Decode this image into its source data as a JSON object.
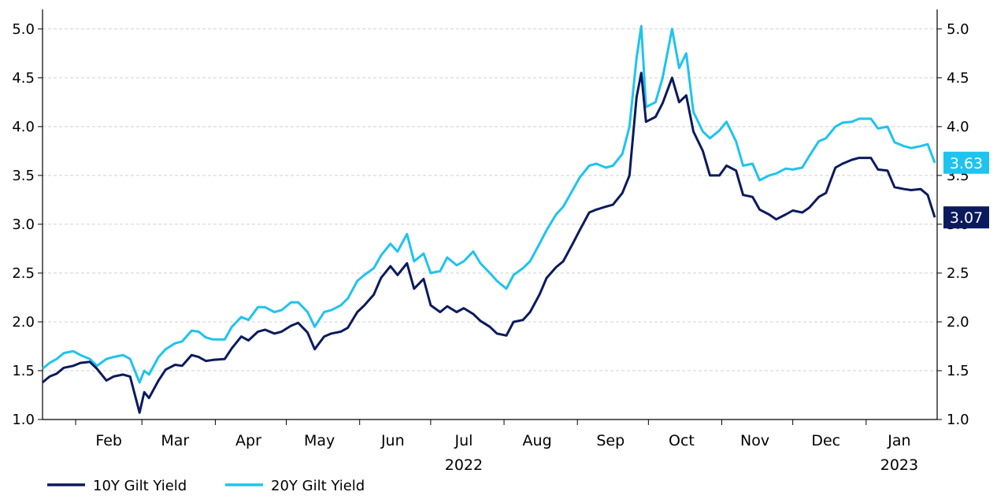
{
  "chart_data": {
    "type": "line",
    "y_axis_left": {
      "ticks": [
        "1.0",
        "1.5",
        "2.0",
        "2.5",
        "3.0",
        "3.5",
        "4.0",
        "4.5",
        "5.0"
      ],
      "range": [
        1.0,
        5.2
      ]
    },
    "y_axis_right": {
      "ticks": [
        "1.0",
        "1.5",
        "2.0",
        "2.5",
        "3.0",
        "3.5",
        "4.0",
        "4.5",
        "5.0"
      ],
      "range": [
        1.0,
        5.2
      ]
    },
    "x_axis": {
      "range": [
        "2022-01-18",
        "2023-01-31"
      ],
      "month_labels": [
        {
          "label": "Feb",
          "date": "2022-02-15"
        },
        {
          "label": "Mar",
          "date": "2022-03-15"
        },
        {
          "label": "Apr",
          "date": "2022-04-15"
        },
        {
          "label": "May",
          "date": "2022-05-15"
        },
        {
          "label": "Jun",
          "date": "2022-06-15"
        },
        {
          "label": "Jul",
          "date": "2022-07-15"
        },
        {
          "label": "Aug",
          "date": "2022-08-15"
        },
        {
          "label": "Sep",
          "date": "2022-09-15"
        },
        {
          "label": "Oct",
          "date": "2022-10-15"
        },
        {
          "label": "Nov",
          "date": "2022-11-15"
        },
        {
          "label": "Dec",
          "date": "2022-12-15"
        },
        {
          "label": "Jan",
          "date": "2023-01-15"
        }
      ],
      "month_boundaries": [
        "2022-02-01",
        "2022-03-01",
        "2022-04-01",
        "2022-05-01",
        "2022-06-01",
        "2022-07-01",
        "2022-08-01",
        "2022-09-01",
        "2022-10-01",
        "2022-11-01",
        "2022-12-01",
        "2023-01-01"
      ],
      "year_labels": [
        {
          "label": "2022",
          "date": "2022-07-15"
        },
        {
          "label": "2023",
          "date": "2023-01-15"
        }
      ]
    },
    "grid": "horizontal-dashed",
    "legend_position": "bottom-left",
    "series": [
      {
        "name": "10Y Gilt Yield",
        "color": "#0b1a5e",
        "end_label": "3.07",
        "points": [
          [
            "2022-01-18",
            1.38
          ],
          [
            "2022-01-21",
            1.44
          ],
          [
            "2022-01-24",
            1.47
          ],
          [
            "2022-01-27",
            1.53
          ],
          [
            "2022-01-31",
            1.55
          ],
          [
            "2022-02-03",
            1.58
          ],
          [
            "2022-02-07",
            1.59
          ],
          [
            "2022-02-10",
            1.52
          ],
          [
            "2022-02-14",
            1.4
          ],
          [
            "2022-02-17",
            1.44
          ],
          [
            "2022-02-21",
            1.46
          ],
          [
            "2022-02-24",
            1.44
          ],
          [
            "2022-02-28",
            1.07
          ],
          [
            "2022-03-02",
            1.28
          ],
          [
            "2022-03-04",
            1.22
          ],
          [
            "2022-03-08",
            1.4
          ],
          [
            "2022-03-11",
            1.51
          ],
          [
            "2022-03-15",
            1.56
          ],
          [
            "2022-03-18",
            1.55
          ],
          [
            "2022-03-22",
            1.66
          ],
          [
            "2022-03-25",
            1.64
          ],
          [
            "2022-03-28",
            1.6
          ],
          [
            "2022-03-31",
            1.61
          ],
          [
            "2022-04-05",
            1.62
          ],
          [
            "2022-04-08",
            1.73
          ],
          [
            "2022-04-12",
            1.85
          ],
          [
            "2022-04-15",
            1.81
          ],
          [
            "2022-04-19",
            1.9
          ],
          [
            "2022-04-22",
            1.92
          ],
          [
            "2022-04-26",
            1.88
          ],
          [
            "2022-04-29",
            1.9
          ],
          [
            "2022-05-03",
            1.96
          ],
          [
            "2022-05-06",
            1.99
          ],
          [
            "2022-05-10",
            1.89
          ],
          [
            "2022-05-13",
            1.72
          ],
          [
            "2022-05-17",
            1.85
          ],
          [
            "2022-05-20",
            1.88
          ],
          [
            "2022-05-24",
            1.9
          ],
          [
            "2022-05-27",
            1.94
          ],
          [
            "2022-05-31",
            2.1
          ],
          [
            "2022-06-03",
            2.17
          ],
          [
            "2022-06-07",
            2.28
          ],
          [
            "2022-06-10",
            2.45
          ],
          [
            "2022-06-14",
            2.57
          ],
          [
            "2022-06-17",
            2.48
          ],
          [
            "2022-06-21",
            2.6
          ],
          [
            "2022-06-24",
            2.34
          ],
          [
            "2022-06-28",
            2.44
          ],
          [
            "2022-07-01",
            2.17
          ],
          [
            "2022-07-05",
            2.1
          ],
          [
            "2022-07-08",
            2.16
          ],
          [
            "2022-07-12",
            2.1
          ],
          [
            "2022-07-15",
            2.14
          ],
          [
            "2022-07-19",
            2.08
          ],
          [
            "2022-07-22",
            2.01
          ],
          [
            "2022-07-26",
            1.95
          ],
          [
            "2022-07-29",
            1.88
          ],
          [
            "2022-08-02",
            1.86
          ],
          [
            "2022-08-05",
            2.0
          ],
          [
            "2022-08-09",
            2.02
          ],
          [
            "2022-08-12",
            2.1
          ],
          [
            "2022-08-16",
            2.28
          ],
          [
            "2022-08-19",
            2.45
          ],
          [
            "2022-08-23",
            2.56
          ],
          [
            "2022-08-26",
            2.62
          ],
          [
            "2022-08-30",
            2.8
          ],
          [
            "2022-09-02",
            2.94
          ],
          [
            "2022-09-06",
            3.12
          ],
          [
            "2022-09-09",
            3.15
          ],
          [
            "2022-09-13",
            3.18
          ],
          [
            "2022-09-16",
            3.2
          ],
          [
            "2022-09-20",
            3.32
          ],
          [
            "2022-09-23",
            3.5
          ],
          [
            "2022-09-26",
            4.3
          ],
          [
            "2022-09-28",
            4.55
          ],
          [
            "2022-09-30",
            4.05
          ],
          [
            "2022-10-04",
            4.1
          ],
          [
            "2022-10-07",
            4.24
          ],
          [
            "2022-10-11",
            4.5
          ],
          [
            "2022-10-14",
            4.25
          ],
          [
            "2022-10-17",
            4.32
          ],
          [
            "2022-10-20",
            3.95
          ],
          [
            "2022-10-24",
            3.75
          ],
          [
            "2022-10-27",
            3.5
          ],
          [
            "2022-10-31",
            3.5
          ],
          [
            "2022-11-03",
            3.6
          ],
          [
            "2022-11-07",
            3.55
          ],
          [
            "2022-11-10",
            3.3
          ],
          [
            "2022-11-14",
            3.28
          ],
          [
            "2022-11-17",
            3.15
          ],
          [
            "2022-11-21",
            3.1
          ],
          [
            "2022-11-24",
            3.05
          ],
          [
            "2022-11-28",
            3.1
          ],
          [
            "2022-12-01",
            3.14
          ],
          [
            "2022-12-05",
            3.12
          ],
          [
            "2022-12-08",
            3.17
          ],
          [
            "2022-12-12",
            3.28
          ],
          [
            "2022-12-15",
            3.32
          ],
          [
            "2022-12-19",
            3.58
          ],
          [
            "2022-12-22",
            3.62
          ],
          [
            "2022-12-26",
            3.66
          ],
          [
            "2022-12-29",
            3.68
          ],
          [
            "2023-01-03",
            3.68
          ],
          [
            "2023-01-06",
            3.56
          ],
          [
            "2023-01-10",
            3.55
          ],
          [
            "2023-01-13",
            3.38
          ],
          [
            "2023-01-17",
            3.36
          ],
          [
            "2023-01-20",
            3.35
          ],
          [
            "2023-01-24",
            3.36
          ],
          [
            "2023-01-27",
            3.3
          ],
          [
            "2023-01-30",
            3.07
          ]
        ]
      },
      {
        "name": "20Y Gilt Yield",
        "color": "#1ec3f0",
        "end_label": "3.63",
        "points": [
          [
            "2022-01-18",
            1.52
          ],
          [
            "2022-01-21",
            1.58
          ],
          [
            "2022-01-24",
            1.62
          ],
          [
            "2022-01-27",
            1.68
          ],
          [
            "2022-01-31",
            1.7
          ],
          [
            "2022-02-03",
            1.66
          ],
          [
            "2022-02-07",
            1.62
          ],
          [
            "2022-02-10",
            1.55
          ],
          [
            "2022-02-14",
            1.62
          ],
          [
            "2022-02-17",
            1.64
          ],
          [
            "2022-02-21",
            1.66
          ],
          [
            "2022-02-24",
            1.62
          ],
          [
            "2022-02-28",
            1.38
          ],
          [
            "2022-03-02",
            1.5
          ],
          [
            "2022-03-04",
            1.46
          ],
          [
            "2022-03-08",
            1.64
          ],
          [
            "2022-03-11",
            1.72
          ],
          [
            "2022-03-15",
            1.78
          ],
          [
            "2022-03-18",
            1.8
          ],
          [
            "2022-03-22",
            1.91
          ],
          [
            "2022-03-25",
            1.9
          ],
          [
            "2022-03-28",
            1.84
          ],
          [
            "2022-03-31",
            1.82
          ],
          [
            "2022-04-05",
            1.82
          ],
          [
            "2022-04-08",
            1.95
          ],
          [
            "2022-04-12",
            2.05
          ],
          [
            "2022-04-15",
            2.02
          ],
          [
            "2022-04-19",
            2.15
          ],
          [
            "2022-04-22",
            2.15
          ],
          [
            "2022-04-26",
            2.1
          ],
          [
            "2022-04-29",
            2.12
          ],
          [
            "2022-05-03",
            2.2
          ],
          [
            "2022-05-06",
            2.2
          ],
          [
            "2022-05-10",
            2.1
          ],
          [
            "2022-05-13",
            1.95
          ],
          [
            "2022-05-17",
            2.1
          ],
          [
            "2022-05-20",
            2.12
          ],
          [
            "2022-05-24",
            2.17
          ],
          [
            "2022-05-27",
            2.24
          ],
          [
            "2022-05-31",
            2.42
          ],
          [
            "2022-06-03",
            2.48
          ],
          [
            "2022-06-07",
            2.55
          ],
          [
            "2022-06-10",
            2.68
          ],
          [
            "2022-06-14",
            2.8
          ],
          [
            "2022-06-17",
            2.72
          ],
          [
            "2022-06-21",
            2.9
          ],
          [
            "2022-06-24",
            2.62
          ],
          [
            "2022-06-28",
            2.7
          ],
          [
            "2022-07-01",
            2.5
          ],
          [
            "2022-07-05",
            2.52
          ],
          [
            "2022-07-08",
            2.66
          ],
          [
            "2022-07-12",
            2.58
          ],
          [
            "2022-07-15",
            2.62
          ],
          [
            "2022-07-19",
            2.72
          ],
          [
            "2022-07-22",
            2.6
          ],
          [
            "2022-07-26",
            2.5
          ],
          [
            "2022-07-29",
            2.42
          ],
          [
            "2022-08-02",
            2.34
          ],
          [
            "2022-08-05",
            2.48
          ],
          [
            "2022-08-09",
            2.55
          ],
          [
            "2022-08-12",
            2.62
          ],
          [
            "2022-08-16",
            2.8
          ],
          [
            "2022-08-19",
            2.94
          ],
          [
            "2022-08-23",
            3.1
          ],
          [
            "2022-08-26",
            3.18
          ],
          [
            "2022-08-30",
            3.35
          ],
          [
            "2022-09-02",
            3.48
          ],
          [
            "2022-09-06",
            3.6
          ],
          [
            "2022-09-09",
            3.62
          ],
          [
            "2022-09-13",
            3.58
          ],
          [
            "2022-09-16",
            3.6
          ],
          [
            "2022-09-20",
            3.72
          ],
          [
            "2022-09-23",
            4.0
          ],
          [
            "2022-09-26",
            4.7
          ],
          [
            "2022-09-28",
            5.03
          ],
          [
            "2022-09-30",
            4.2
          ],
          [
            "2022-10-04",
            4.25
          ],
          [
            "2022-10-07",
            4.5
          ],
          [
            "2022-10-11",
            5.0
          ],
          [
            "2022-10-14",
            4.6
          ],
          [
            "2022-10-17",
            4.75
          ],
          [
            "2022-10-20",
            4.15
          ],
          [
            "2022-10-24",
            3.95
          ],
          [
            "2022-10-27",
            3.88
          ],
          [
            "2022-10-31",
            3.96
          ],
          [
            "2022-11-03",
            4.05
          ],
          [
            "2022-11-07",
            3.85
          ],
          [
            "2022-11-10",
            3.6
          ],
          [
            "2022-11-14",
            3.62
          ],
          [
            "2022-11-17",
            3.45
          ],
          [
            "2022-11-21",
            3.5
          ],
          [
            "2022-11-24",
            3.52
          ],
          [
            "2022-11-28",
            3.57
          ],
          [
            "2022-12-01",
            3.56
          ],
          [
            "2022-12-05",
            3.58
          ],
          [
            "2022-12-08",
            3.7
          ],
          [
            "2022-12-12",
            3.85
          ],
          [
            "2022-12-15",
            3.88
          ],
          [
            "2022-12-19",
            4.0
          ],
          [
            "2022-12-22",
            4.04
          ],
          [
            "2022-12-26",
            4.05
          ],
          [
            "2022-12-29",
            4.08
          ],
          [
            "2023-01-03",
            4.08
          ],
          [
            "2023-01-06",
            3.98
          ],
          [
            "2023-01-10",
            4.0
          ],
          [
            "2023-01-13",
            3.84
          ],
          [
            "2023-01-17",
            3.8
          ],
          [
            "2023-01-20",
            3.78
          ],
          [
            "2023-01-24",
            3.8
          ],
          [
            "2023-01-27",
            3.82
          ],
          [
            "2023-01-30",
            3.63
          ]
        ]
      }
    ]
  }
}
